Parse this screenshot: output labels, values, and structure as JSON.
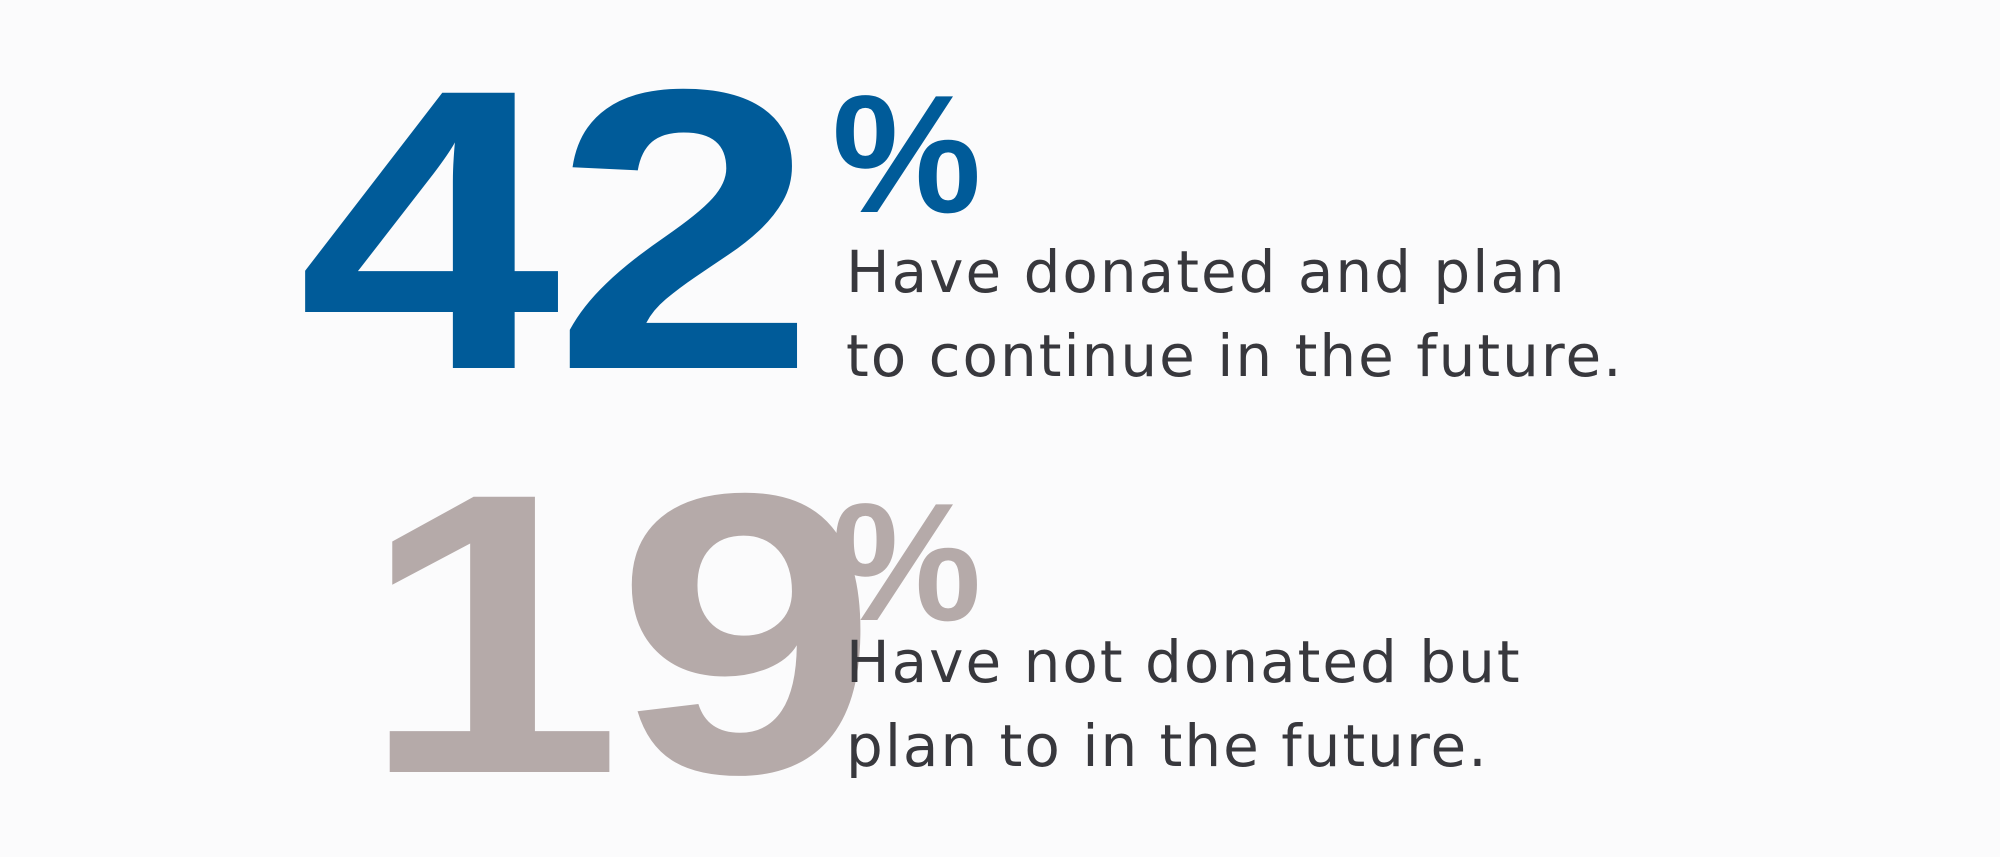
{
  "colors": {
    "primary": "#005b99",
    "secondary": "#b5aaa9",
    "text": "#38383d",
    "background": "#fbfbfc"
  },
  "stats": [
    {
      "value": "42",
      "unit": "%",
      "lines": [
        "Have donated and plan",
        "to continue in the future."
      ]
    },
    {
      "value": "19",
      "unit": "%",
      "lines": [
        "Have not donated but",
        "plan to in the future."
      ]
    }
  ]
}
